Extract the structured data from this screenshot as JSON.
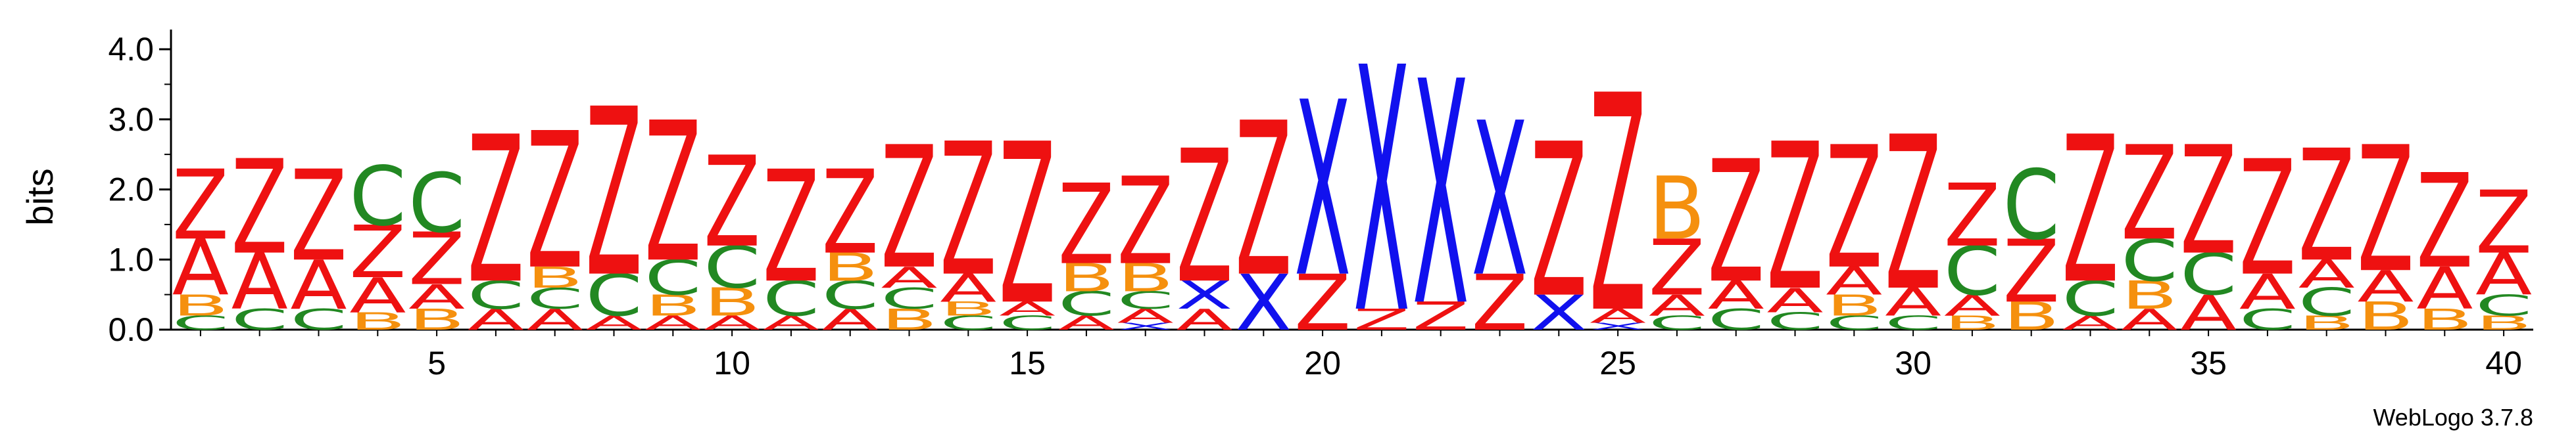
{
  "chart_data": {
    "type": "sequence-logo",
    "ylabel": "bits",
    "ylim": [
      0.0,
      4.0
    ],
    "y_ticks": [
      "0.0",
      "1.0",
      "2.0",
      "3.0",
      "4.0"
    ],
    "x_ticks": [
      "5",
      "10",
      "15",
      "20",
      "25",
      "30",
      "35",
      "40"
    ],
    "x_range": [
      1,
      40
    ],
    "footer": "WebLogo 3.7.8",
    "colors": {
      "Z": "#ee1111",
      "A": "#ee1111",
      "X": "#1111ee",
      "C": "#228822",
      "B": "#f5900e"
    },
    "positions": [
      {
        "pos": 1,
        "stack": [
          [
            "C",
            0.2
          ],
          [
            "B",
            0.3
          ],
          [
            "A",
            0.8
          ],
          [
            "Z",
            1.0
          ]
        ]
      },
      {
        "pos": 2,
        "stack": [
          [
            "C",
            0.3
          ],
          [
            "A",
            0.8
          ],
          [
            "Z",
            1.35
          ]
        ]
      },
      {
        "pos": 3,
        "stack": [
          [
            "C",
            0.3
          ],
          [
            "A",
            0.7
          ],
          [
            "Z",
            1.3
          ]
        ]
      },
      {
        "pos": 4,
        "stack": [
          [
            "B",
            0.25
          ],
          [
            "A",
            0.5
          ],
          [
            "Z",
            0.75
          ],
          [
            "C",
            0.85
          ]
        ]
      },
      {
        "pos": 5,
        "stack": [
          [
            "B",
            0.3
          ],
          [
            "A",
            0.35
          ],
          [
            "Z",
            0.75
          ],
          [
            "C",
            0.85
          ]
        ]
      },
      {
        "pos": 6,
        "stack": [
          [
            "A",
            0.3
          ],
          [
            "C",
            0.4
          ],
          [
            "Z",
            2.1
          ]
        ]
      },
      {
        "pos": 7,
        "stack": [
          [
            "A",
            0.3
          ],
          [
            "C",
            0.3
          ],
          [
            "B",
            0.3
          ],
          [
            "Z",
            1.95
          ]
        ]
      },
      {
        "pos": 8,
        "stack": [
          [
            "A",
            0.2
          ],
          [
            "C",
            0.6
          ],
          [
            "Z",
            2.4
          ]
        ]
      },
      {
        "pos": 9,
        "stack": [
          [
            "A",
            0.2
          ],
          [
            "B",
            0.3
          ],
          [
            "C",
            0.5
          ],
          [
            "Z",
            2.0
          ]
        ]
      },
      {
        "pos": 10,
        "stack": [
          [
            "A",
            0.2
          ],
          [
            "B",
            0.4
          ],
          [
            "C",
            0.6
          ],
          [
            "Z",
            1.3
          ]
        ]
      },
      {
        "pos": 11,
        "stack": [
          [
            "A",
            0.2
          ],
          [
            "C",
            0.5
          ],
          [
            "Z",
            1.6
          ]
        ]
      },
      {
        "pos": 12,
        "stack": [
          [
            "A",
            0.3
          ],
          [
            "C",
            0.4
          ],
          [
            "B",
            0.4
          ],
          [
            "Z",
            1.2
          ]
        ]
      },
      {
        "pos": 13,
        "stack": [
          [
            "B",
            0.3
          ],
          [
            "C",
            0.3
          ],
          [
            "A",
            0.3
          ],
          [
            "Z",
            1.75
          ]
        ]
      },
      {
        "pos": 14,
        "stack": [
          [
            "C",
            0.2
          ],
          [
            "B",
            0.2
          ],
          [
            "A",
            0.4
          ],
          [
            "Z",
            1.9
          ]
        ]
      },
      {
        "pos": 15,
        "stack": [
          [
            "C",
            0.2
          ],
          [
            "A",
            0.2
          ],
          [
            "Z",
            2.3
          ]
        ]
      },
      {
        "pos": 16,
        "stack": [
          [
            "A",
            0.2
          ],
          [
            "C",
            0.35
          ],
          [
            "B",
            0.4
          ],
          [
            "Z",
            1.15
          ]
        ]
      },
      {
        "pos": 17,
        "stack": [
          [
            "X",
            0.1
          ],
          [
            "A",
            0.2
          ],
          [
            "C",
            0.25
          ],
          [
            "B",
            0.4
          ],
          [
            "Z",
            1.25
          ]
        ]
      },
      {
        "pos": 18,
        "stack": [
          [
            "A",
            0.3
          ],
          [
            "X",
            0.4
          ],
          [
            "Z",
            1.9
          ]
        ]
      },
      {
        "pos": 19,
        "stack": [
          [
            "X",
            0.8
          ],
          [
            "Z",
            2.2
          ]
        ]
      },
      {
        "pos": 20,
        "stack": [
          [
            "Z",
            0.8
          ],
          [
            "X",
            2.5
          ]
        ]
      },
      {
        "pos": 21,
        "stack": [
          [
            "Z",
            0.3
          ],
          [
            "X",
            3.5
          ]
        ]
      },
      {
        "pos": 22,
        "stack": [
          [
            "Z",
            0.4
          ],
          [
            "X",
            3.2
          ]
        ]
      },
      {
        "pos": 23,
        "stack": [
          [
            "Z",
            0.8
          ],
          [
            "X",
            2.2
          ]
        ]
      },
      {
        "pos": 24,
        "stack": [
          [
            "X",
            0.5
          ],
          [
            "Z",
            2.2
          ]
        ]
      },
      {
        "pos": 25,
        "stack": [
          [
            "X",
            0.1
          ],
          [
            "A",
            0.2
          ],
          [
            "Z",
            3.1
          ]
        ]
      },
      {
        "pos": 26,
        "stack": [
          [
            "C",
            0.2
          ],
          [
            "A",
            0.3
          ],
          [
            "Z",
            0.8
          ],
          [
            "B",
            0.9
          ]
        ]
      },
      {
        "pos": 27,
        "stack": [
          [
            "C",
            0.3
          ],
          [
            "A",
            0.4
          ],
          [
            "Z",
            1.75
          ]
        ]
      },
      {
        "pos": 28,
        "stack": [
          [
            "C",
            0.25
          ],
          [
            "A",
            0.35
          ],
          [
            "Z",
            2.1
          ]
        ]
      },
      {
        "pos": 29,
        "stack": [
          [
            "C",
            0.2
          ],
          [
            "B",
            0.3
          ],
          [
            "A",
            0.4
          ],
          [
            "Z",
            1.75
          ]
        ]
      },
      {
        "pos": 30,
        "stack": [
          [
            "C",
            0.2
          ],
          [
            "A",
            0.4
          ],
          [
            "Z",
            2.2
          ]
        ]
      },
      {
        "pos": 31,
        "stack": [
          [
            "B",
            0.2
          ],
          [
            "A",
            0.3
          ],
          [
            "C",
            0.7
          ],
          [
            "Z",
            0.9
          ]
        ]
      },
      {
        "pos": 32,
        "stack": [
          [
            "B",
            0.4
          ],
          [
            "Z",
            0.9
          ],
          [
            "C",
            1.0
          ]
        ]
      },
      {
        "pos": 33,
        "stack": [
          [
            "A",
            0.2
          ],
          [
            "C",
            0.5
          ],
          [
            "Z",
            2.1
          ]
        ]
      },
      {
        "pos": 34,
        "stack": [
          [
            "A",
            0.3
          ],
          [
            "B",
            0.4
          ],
          [
            "C",
            0.6
          ],
          [
            "Z",
            1.35
          ]
        ]
      },
      {
        "pos": 35,
        "stack": [
          [
            "A",
            0.5
          ],
          [
            "C",
            0.6
          ],
          [
            "Z",
            1.55
          ]
        ]
      },
      {
        "pos": 36,
        "stack": [
          [
            "C",
            0.3
          ],
          [
            "A",
            0.5
          ],
          [
            "Z",
            1.65
          ]
        ]
      },
      {
        "pos": 37,
        "stack": [
          [
            "B",
            0.2
          ],
          [
            "C",
            0.4
          ],
          [
            "A",
            0.4
          ],
          [
            "Z",
            1.6
          ]
        ]
      },
      {
        "pos": 38,
        "stack": [
          [
            "B",
            0.4
          ],
          [
            "A",
            0.45
          ],
          [
            "Z",
            1.8
          ]
        ]
      },
      {
        "pos": 39,
        "stack": [
          [
            "B",
            0.3
          ],
          [
            "A",
            0.6
          ],
          [
            "Z",
            1.35
          ]
        ]
      },
      {
        "pos": 40,
        "stack": [
          [
            "B",
            0.2
          ],
          [
            "C",
            0.3
          ],
          [
            "A",
            0.6
          ],
          [
            "Z",
            0.9
          ]
        ]
      }
    ]
  }
}
